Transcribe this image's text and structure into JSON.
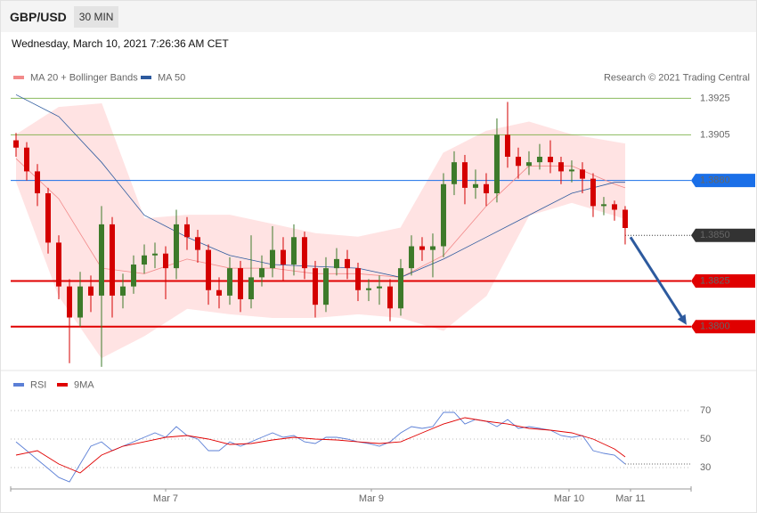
{
  "header": {
    "symbol": "GBP/USD",
    "interval": "30 MIN",
    "timestamp": "Wednesday, March 10, 2021 7:26:36 AM CET"
  },
  "chart_data": [
    {
      "type": "candlestick",
      "credit": "Research © 2021 Trading Central",
      "up_color": "#3d7a2a",
      "down_color": "#d40000",
      "xlim": [
        -0.5,
        63.17
      ],
      "ylim": [
        1.3776,
        1.3932
      ],
      "open": [
        1.3902,
        1.3898,
        1.3885,
        1.3873,
        1.3846,
        1.3822,
        1.3805,
        1.3822,
        1.3817,
        1.3856,
        1.3817,
        1.3822,
        1.3834,
        1.3839,
        1.384,
        1.3832,
        1.3856,
        1.3849,
        1.3842,
        1.382,
        1.3817,
        1.3832,
        1.3815,
        1.3827,
        1.3832,
        1.3842,
        1.3834,
        1.3849,
        1.3832,
        1.3812,
        1.3832,
        1.3837,
        1.3832,
        1.382,
        1.3821,
        1.3822,
        1.381,
        1.3832,
        1.3844,
        1.3842,
        1.3844,
        1.3878,
        1.389,
        1.3876,
        1.3878,
        1.3873,
        1.3905,
        1.3893,
        1.3888,
        1.389,
        1.3893,
        1.389,
        1.3885,
        1.3886,
        1.3881,
        1.3866,
        1.3867,
        1.3864
      ],
      "high": [
        1.3906,
        1.3901,
        1.3889,
        1.3876,
        1.385,
        1.3826,
        1.383,
        1.3828,
        1.3866,
        1.386,
        1.3829,
        1.3839,
        1.3845,
        1.3846,
        1.3844,
        1.3864,
        1.386,
        1.3853,
        1.3845,
        1.3827,
        1.3838,
        1.3836,
        1.385,
        1.3839,
        1.3855,
        1.3849,
        1.3856,
        1.3852,
        1.3836,
        1.3838,
        1.3843,
        1.3842,
        1.3835,
        1.3826,
        1.3828,
        1.3826,
        1.3837,
        1.385,
        1.3849,
        1.3851,
        1.3884,
        1.3896,
        1.3894,
        1.3886,
        1.3884,
        1.3914,
        1.3923,
        1.3898,
        1.3896,
        1.39,
        1.3902,
        1.3893,
        1.3891,
        1.389,
        1.3884,
        1.3871,
        1.3869,
        1.3866
      ],
      "low": [
        1.3893,
        1.388,
        1.3866,
        1.384,
        1.3815,
        1.378,
        1.38,
        1.3808,
        1.3778,
        1.3805,
        1.381,
        1.3818,
        1.3829,
        1.3832,
        1.3815,
        1.3826,
        1.3842,
        1.3835,
        1.3812,
        1.381,
        1.3812,
        1.3808,
        1.381,
        1.3822,
        1.3827,
        1.3825,
        1.3828,
        1.3826,
        1.3805,
        1.3808,
        1.3828,
        1.3826,
        1.3814,
        1.3814,
        1.3812,
        1.3803,
        1.3806,
        1.3828,
        1.3836,
        1.3827,
        1.3838,
        1.3872,
        1.3867,
        1.387,
        1.3866,
        1.3868,
        1.3887,
        1.3881,
        1.3883,
        1.3886,
        1.3884,
        1.3878,
        1.3879,
        1.3873,
        1.386,
        1.3861,
        1.3858,
        1.3845
      ],
      "close": [
        1.3898,
        1.3885,
        1.3873,
        1.3846,
        1.3822,
        1.3805,
        1.3822,
        1.3817,
        1.3856,
        1.3817,
        1.3822,
        1.3834,
        1.3839,
        1.384,
        1.3832,
        1.3856,
        1.3849,
        1.3842,
        1.382,
        1.3817,
        1.3832,
        1.3815,
        1.3827,
        1.3832,
        1.3842,
        1.3834,
        1.3849,
        1.3832,
        1.3812,
        1.3832,
        1.3837,
        1.3832,
        1.382,
        1.3821,
        1.3822,
        1.381,
        1.3832,
        1.3844,
        1.3842,
        1.3844,
        1.3878,
        1.389,
        1.3876,
        1.3878,
        1.3873,
        1.3905,
        1.3893,
        1.3888,
        1.389,
        1.3893,
        1.389,
        1.3885,
        1.3886,
        1.3881,
        1.3866,
        1.3867,
        1.3864,
        1.3854
      ],
      "overlays": [
        {
          "name": "MA 20 + Bollinger Bands",
          "color": "#f28a8a",
          "band_color": "#ffe3e3",
          "x": [
            0,
            4,
            8,
            12,
            16,
            20,
            24,
            28,
            32,
            36,
            40,
            44,
            48,
            52,
            56,
            57
          ],
          "values": [
            1.3892,
            1.387,
            1.3832,
            1.3829,
            1.3837,
            1.3832,
            1.3832,
            1.3829,
            1.3829,
            1.3827,
            1.3839,
            1.3866,
            1.3888,
            1.3888,
            1.3878,
            1.3876
          ],
          "upper": [
            1.3905,
            1.392,
            1.3922,
            1.3859,
            1.3861,
            1.3861,
            1.3856,
            1.3851,
            1.3849,
            1.3854,
            1.3895,
            1.3907,
            1.3912,
            1.3905,
            1.3901,
            1.39
          ],
          "lower": [
            1.388,
            1.3817,
            1.3783,
            1.3795,
            1.381,
            1.3807,
            1.3805,
            1.3805,
            1.3807,
            1.3805,
            1.3798,
            1.3817,
            1.3861,
            1.3868,
            1.3861,
            1.3859
          ]
        },
        {
          "name": "MA 50",
          "color": "#2d5a9e",
          "x": [
            0,
            4,
            8,
            12,
            16,
            20,
            24,
            28,
            32,
            36,
            40,
            44,
            48,
            52,
            56,
            57
          ],
          "values": [
            1.3927,
            1.3915,
            1.389,
            1.3861,
            1.3849,
            1.3839,
            1.3834,
            1.3833,
            1.3832,
            1.3827,
            1.3837,
            1.3849,
            1.3861,
            1.3873,
            1.3879,
            1.3879
          ]
        }
      ],
      "levels": [
        {
          "value": 1.3925,
          "color": "#5a9e1a",
          "style": "thin"
        },
        {
          "value": 1.3905,
          "color": "#5a9e1a",
          "style": "thin"
        },
        {
          "value": 1.388,
          "label": "1.3880",
          "color": "#1a6fe8",
          "style": "box"
        },
        {
          "value": 1.385,
          "label": "1.3850",
          "color": "#333333",
          "style": "dotted"
        },
        {
          "value": 1.3825,
          "color": "#e00000",
          "style": "thick"
        },
        {
          "value": 1.38,
          "label": "1.3800",
          "color": "#e00000",
          "style": "thick"
        }
      ],
      "projection": {
        "color": "#2d5a9e",
        "x": [
          57.5,
          62.75
        ],
        "values": [
          1.3849,
          1.3801
        ]
      }
    },
    {
      "type": "line",
      "xlim": [
        -0.5,
        63.17
      ],
      "ylim": [
        16.9,
        79.4
      ],
      "yticks": [
        30,
        50,
        70
      ],
      "xticks": [
        {
          "value": 14,
          "label": "Mar 7"
        },
        {
          "value": 33.25,
          "label": "Mar 9"
        },
        {
          "value": 51.75,
          "label": "Mar 10"
        },
        {
          "value": 57.5,
          "label": "Mar 11"
        }
      ],
      "series": [
        {
          "name": "RSI",
          "color": "#5b7fd6",
          "x": [
            0,
            1,
            2,
            3,
            4,
            5,
            6,
            7,
            8,
            9,
            10,
            11,
            12,
            13,
            14,
            15,
            16,
            17,
            18,
            19,
            20,
            21,
            22,
            23,
            24,
            25,
            26,
            27,
            28,
            29,
            30,
            31,
            32,
            33,
            34,
            35,
            36,
            37,
            38,
            39,
            40,
            41,
            42,
            43,
            44,
            45,
            46,
            47,
            48,
            49,
            50,
            51,
            52,
            53,
            54,
            55,
            56,
            57
          ],
          "values": [
            48.1,
            41.9,
            35.6,
            29.4,
            23.1,
            20,
            32.5,
            45,
            48.1,
            41.9,
            45,
            48.1,
            51.3,
            54.4,
            51.3,
            58.8,
            52.5,
            50,
            41.9,
            41.9,
            48.1,
            45,
            48.1,
            51.3,
            54.4,
            51.3,
            52.5,
            48.1,
            46.9,
            51.3,
            51.3,
            50,
            48.1,
            46.9,
            45,
            48.1,
            54.4,
            58.8,
            57.5,
            58.8,
            68.8,
            68.8,
            60.6,
            63.8,
            62.5,
            58.8,
            63.8,
            57.5,
            58.8,
            57.5,
            56.3,
            52.5,
            51.3,
            52.5,
            41.9,
            40,
            38.8,
            32.5
          ]
        },
        {
          "name": "9MA",
          "color": "#e00000",
          "x": [
            0,
            2,
            4,
            6,
            8,
            10,
            12,
            14,
            16,
            18,
            20,
            22,
            24,
            26,
            28,
            30,
            32,
            34,
            36,
            38,
            40,
            42,
            44,
            46,
            48,
            50,
            52,
            54,
            56,
            57
          ],
          "values": [
            38.8,
            41.9,
            32.5,
            26.3,
            38.8,
            45,
            48.1,
            51.3,
            52.5,
            50,
            46.3,
            46.9,
            49.4,
            51.3,
            50,
            49.4,
            48.1,
            46.9,
            48.1,
            54.4,
            60.6,
            65,
            62.5,
            60.6,
            57.5,
            56.3,
            54.4,
            50,
            43.1,
            37.5
          ]
        }
      ]
    }
  ]
}
